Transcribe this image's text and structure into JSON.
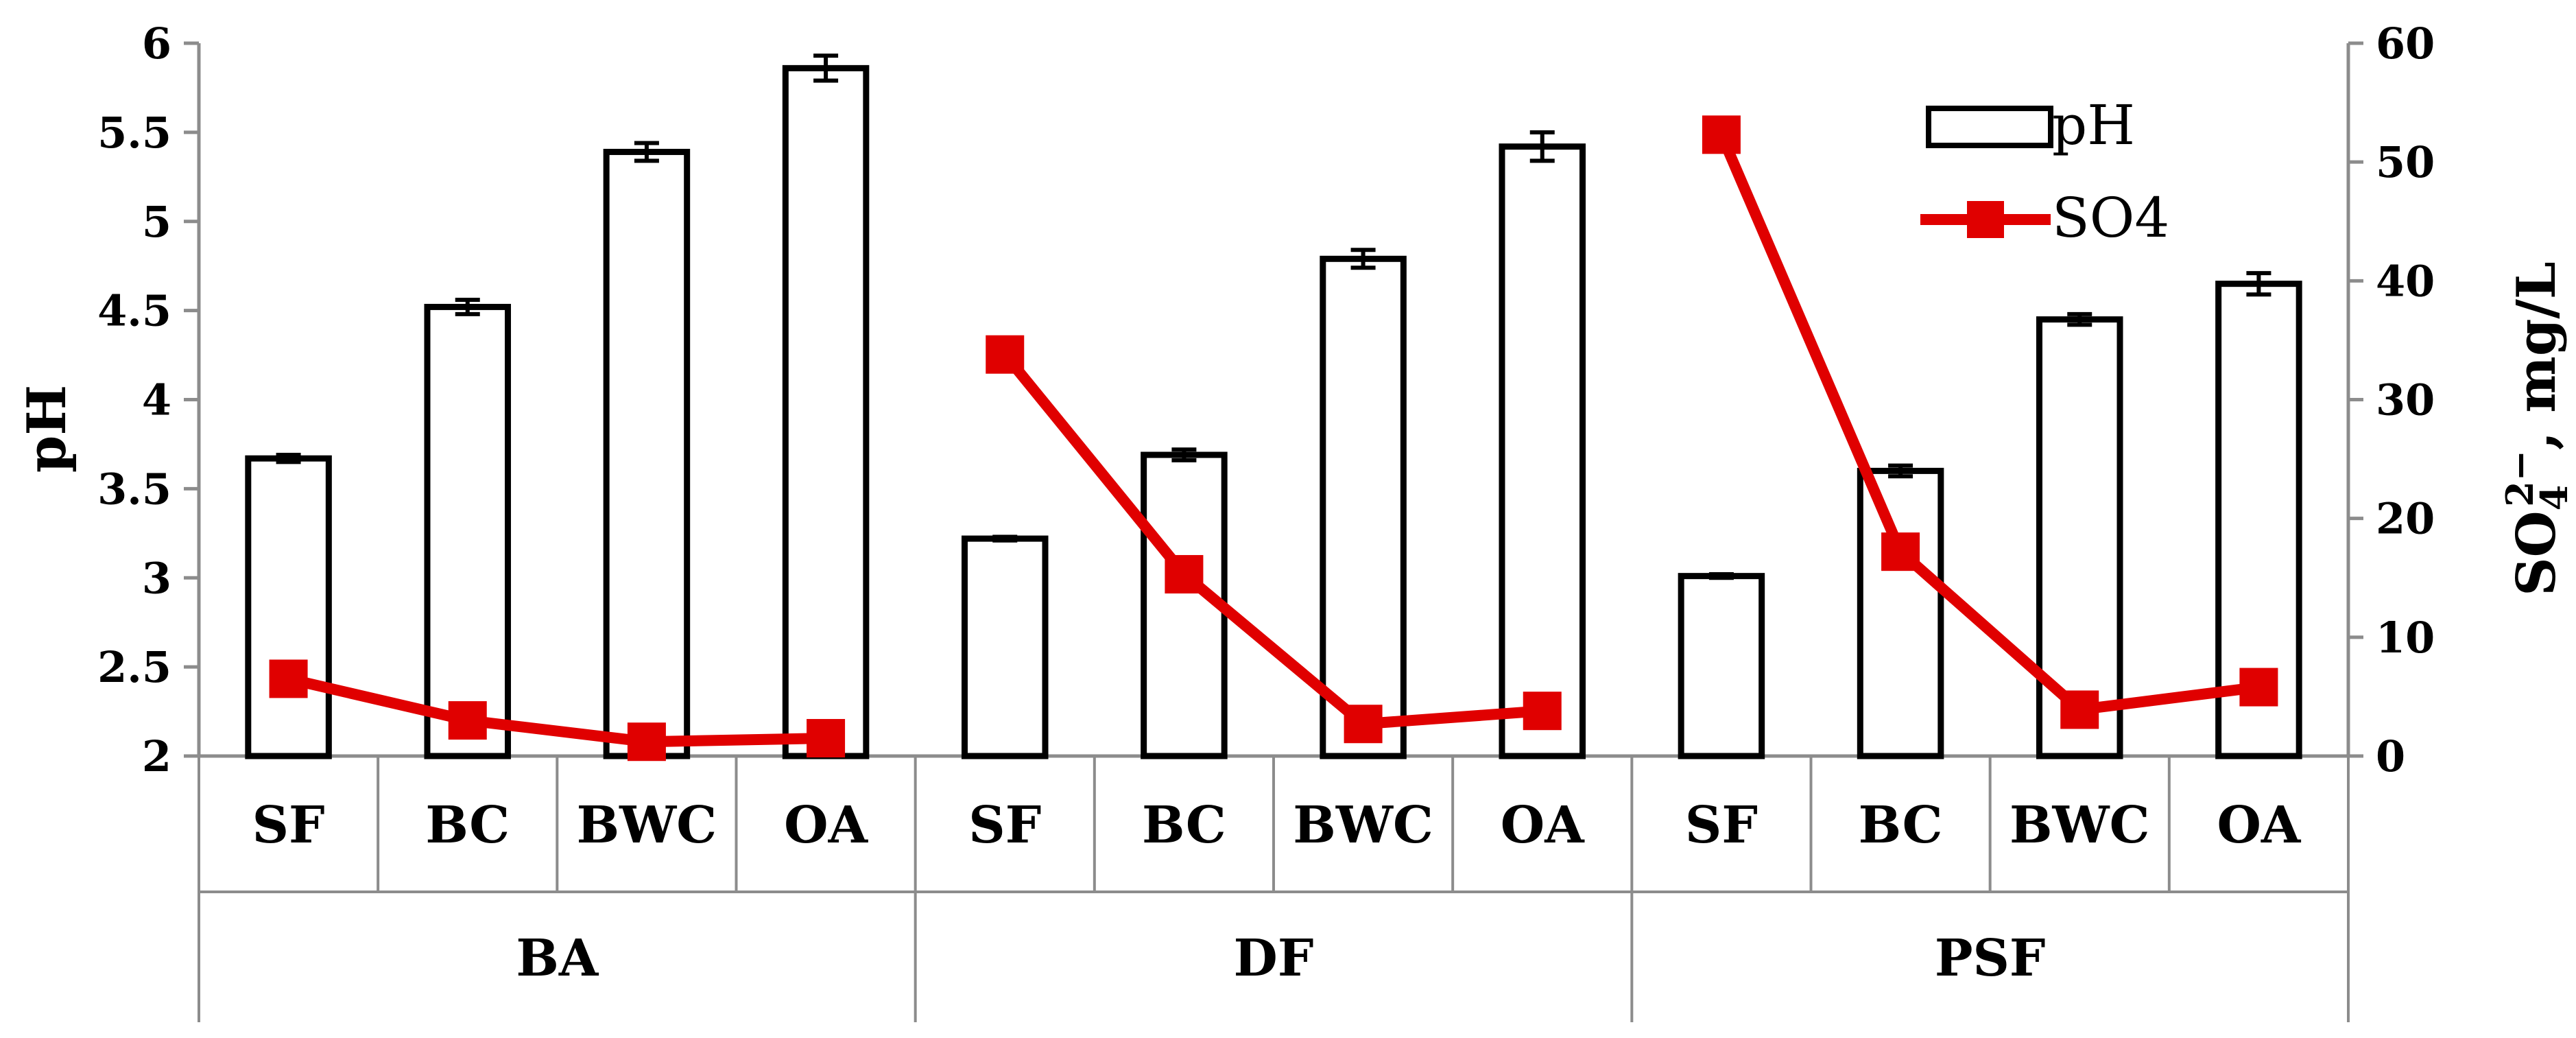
{
  "chart_data": {
    "type": "bar",
    "groups": [
      {
        "label": "BA",
        "categories": [
          "SF",
          "BC",
          "BWC",
          "OA"
        ]
      },
      {
        "label": "DF",
        "categories": [
          "SF",
          "BC",
          "BWC",
          "OA"
        ]
      },
      {
        "label": "PSF",
        "categories": [
          "SF",
          "BC",
          "BWC",
          "OA"
        ]
      }
    ],
    "series": [
      {
        "name": "pH",
        "type": "bar",
        "axis": "left",
        "values": [
          3.67,
          4.52,
          5.39,
          5.86,
          3.22,
          3.69,
          4.79,
          5.42,
          3.01,
          3.6,
          4.45,
          4.65
        ],
        "errors": [
          0.02,
          0.04,
          0.05,
          0.07,
          0.01,
          0.03,
          0.05,
          0.08,
          0.01,
          0.03,
          0.03,
          0.06
        ],
        "color": "#000000"
      },
      {
        "name": "SO4",
        "type": "line",
        "axis": "right",
        "values": [
          6.5,
          3.0,
          1.2,
          1.5,
          33.8,
          15.3,
          2.7,
          3.8,
          52.3,
          17.2,
          3.9,
          5.8
        ],
        "color": "#e00000"
      }
    ],
    "y_left": {
      "label": "pH",
      "range": [
        2,
        6
      ],
      "ticks": [
        "2",
        "2.5",
        "3",
        "3.5",
        "4",
        "4.5",
        "5",
        "5.5",
        "6"
      ],
      "tick_values": [
        2,
        2.5,
        3,
        3.5,
        4,
        4.5,
        5,
        5.5,
        6
      ]
    },
    "y_right": {
      "label_main": "SO",
      "label_sub": "4",
      "label_sup": "2−",
      "label_rest": ", mg/L",
      "range": [
        0,
        60
      ],
      "ticks": [
        "0",
        "10",
        "20",
        "30",
        "40",
        "50",
        "60"
      ],
      "tick_values": [
        0,
        10,
        20,
        30,
        40,
        50,
        60
      ]
    },
    "legend": {
      "position": "top-right",
      "entries": [
        "pH",
        "SO4"
      ]
    },
    "grid": false
  }
}
